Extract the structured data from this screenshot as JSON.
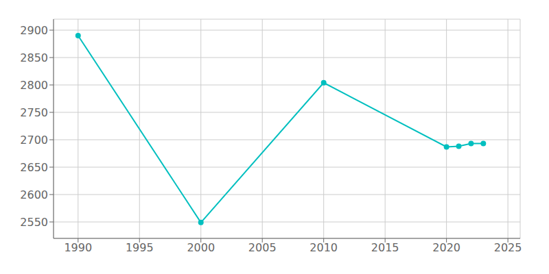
{
  "chart_data": {
    "type": "line",
    "x": [
      1990,
      2000,
      2010,
      2020,
      2021,
      2022,
      2023
    ],
    "values": [
      2890,
      2549,
      2804,
      2687,
      2688,
      2693,
      2693
    ],
    "color": "#00BFBF",
    "marker": "circle",
    "xlim": [
      1988,
      2026
    ],
    "ylim": [
      2520,
      2920
    ],
    "xticks": [
      1990,
      1995,
      2000,
      2005,
      2010,
      2015,
      2020,
      2025
    ],
    "yticks": [
      2550,
      2600,
      2650,
      2700,
      2750,
      2800,
      2850,
      2900
    ],
    "grid": true
  }
}
